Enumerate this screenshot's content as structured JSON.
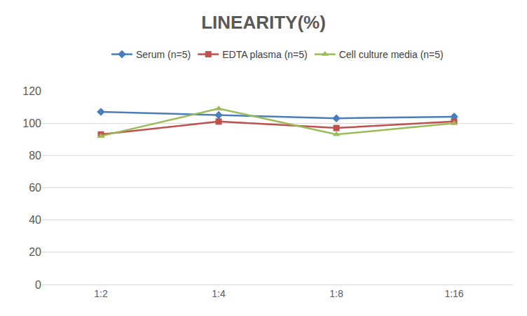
{
  "chart_data": {
    "type": "line",
    "title": "LINEARITY(%)",
    "categories": [
      "1:2",
      "1:4",
      "1:8",
      "1:16"
    ],
    "series": [
      {
        "name": "Serum (n=5)",
        "color": "#4a7ebb",
        "marker": "diamond",
        "values": [
          107,
          105,
          103,
          104
        ]
      },
      {
        "name": "EDTA plasma (n=5)",
        "color": "#c0504d",
        "marker": "square",
        "values": [
          93,
          101,
          97,
          101
        ]
      },
      {
        "name": "Cell culture media (n=5)",
        "color": "#9bbb59",
        "marker": "triangle-up",
        "values": [
          92,
          109,
          93,
          100
        ]
      }
    ],
    "ylim": [
      0,
      120
    ],
    "yticks": [
      0,
      20,
      40,
      60,
      80,
      100,
      120
    ],
    "grid": true,
    "legend": "top"
  }
}
